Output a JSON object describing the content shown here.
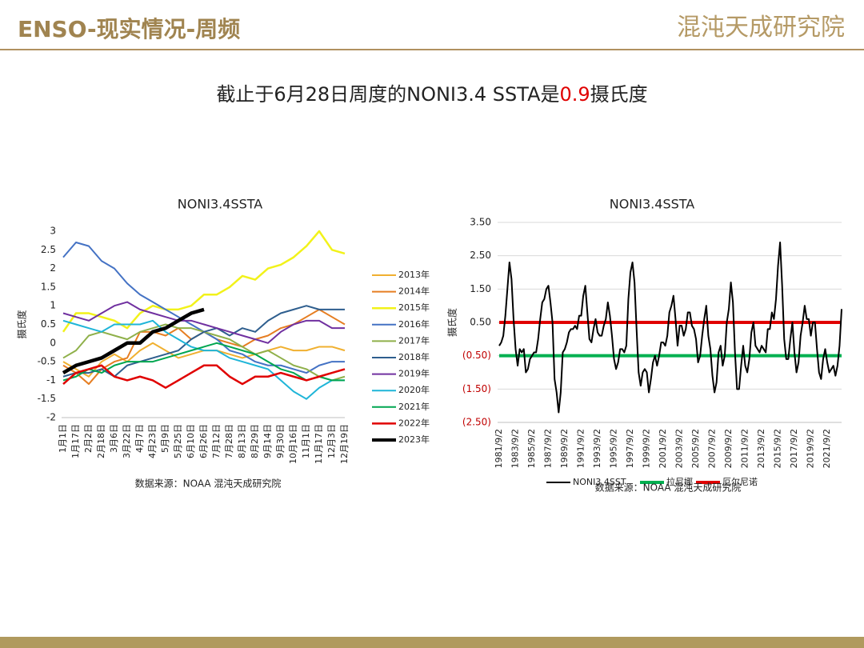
{
  "header": {
    "title": "ENSO-现实情况-周频",
    "logo": "混沌天成研究院"
  },
  "subtitle": {
    "prefix": "截止于6月28日周度的NONI3.4 SSTA是",
    "highlight": "0.9",
    "suffix": "摄氏度"
  },
  "chart_data": [
    {
      "type": "line",
      "title": "NONI3.4SSTA",
      "ylabel": "摄氏度",
      "source": "数据来源：NOAA 混沌天成研究院",
      "categories": [
        "1月1日",
        "1月17日",
        "2月2日",
        "2月18日",
        "3月6日",
        "3月22日",
        "4月7日",
        "4月23日",
        "5月9日",
        "5月25日",
        "6月10日",
        "6月26日",
        "7月12日",
        "7月28日",
        "8月13日",
        "8月29日",
        "9月14日",
        "9月30日",
        "10月16日",
        "11月1日",
        "11月17日",
        "12月3日",
        "12月19日"
      ],
      "ylim": [
        -2,
        3
      ],
      "yticks": [
        -2,
        -1.5,
        -1,
        -0.5,
        0,
        0.5,
        1,
        1.5,
        2,
        2.5,
        3
      ],
      "grid": false,
      "legend": "right",
      "series": [
        {
          "name": "2013年",
          "color": "#f0b030",
          "width": 2,
          "values": [
            -0.5,
            -0.7,
            -0.9,
            -0.5,
            -0.3,
            -0.5,
            -0.2,
            0.0,
            -0.2,
            -0.4,
            -0.3,
            -0.2,
            -0.2,
            -0.3,
            -0.4,
            -0.3,
            -0.2,
            -0.1,
            -0.2,
            -0.2,
            -0.1,
            -0.1,
            -0.2
          ]
        },
        {
          "name": "2014年",
          "color": "#e67e22",
          "width": 2,
          "values": [
            -0.6,
            -0.8,
            -1.1,
            -0.7,
            -0.5,
            -0.4,
            0.3,
            0.3,
            0.2,
            0.4,
            0.1,
            0.3,
            0.1,
            0.0,
            -0.1,
            0.1,
            0.2,
            0.4,
            0.5,
            0.7,
            0.9,
            0.7,
            0.5
          ]
        },
        {
          "name": "2015年",
          "color": "#f2f21a",
          "width": 2.5,
          "values": [
            0.3,
            0.8,
            0.8,
            0.7,
            0.6,
            0.4,
            0.8,
            1.0,
            0.9,
            0.9,
            1.0,
            1.3,
            1.3,
            1.5,
            1.8,
            1.7,
            2.0,
            2.1,
            2.3,
            2.6,
            3.0,
            2.5,
            2.4
          ]
        },
        {
          "name": "2016年",
          "color": "#4472c4",
          "width": 2,
          "values": [
            2.3,
            2.7,
            2.6,
            2.2,
            2.0,
            1.6,
            1.3,
            1.1,
            0.9,
            0.7,
            0.5,
            0.3,
            0.1,
            -0.2,
            -0.3,
            -0.5,
            -0.6,
            -0.6,
            -0.7,
            -0.8,
            -0.6,
            -0.5,
            -0.5
          ]
        },
        {
          "name": "2017年",
          "color": "#8fb04a",
          "width": 2,
          "values": [
            -0.4,
            -0.2,
            0.2,
            0.3,
            0.2,
            0.1,
            0.3,
            0.4,
            0.5,
            0.4,
            0.4,
            0.3,
            0.2,
            0.1,
            -0.1,
            -0.3,
            -0.2,
            -0.4,
            -0.6,
            -0.7,
            -0.9,
            -1.0,
            -0.9
          ]
        },
        {
          "name": "2018年",
          "color": "#2e5e8e",
          "width": 2,
          "values": [
            -0.9,
            -0.8,
            -0.8,
            -0.7,
            -0.9,
            -0.6,
            -0.5,
            -0.4,
            -0.3,
            -0.2,
            0.1,
            0.3,
            0.4,
            0.2,
            0.4,
            0.3,
            0.6,
            0.8,
            0.9,
            1.0,
            0.9,
            0.9,
            0.9
          ]
        },
        {
          "name": "2019年",
          "color": "#7030a0",
          "width": 2,
          "values": [
            0.8,
            0.7,
            0.6,
            0.8,
            1.0,
            1.1,
            0.9,
            0.8,
            0.7,
            0.6,
            0.6,
            0.5,
            0.4,
            0.3,
            0.2,
            0.1,
            0.0,
            0.3,
            0.5,
            0.6,
            0.6,
            0.4,
            0.4
          ]
        },
        {
          "name": "2020年",
          "color": "#1fb5d8",
          "width": 2,
          "values": [
            0.6,
            0.5,
            0.4,
            0.3,
            0.5,
            0.5,
            0.5,
            0.6,
            0.3,
            0.1,
            -0.1,
            -0.2,
            -0.2,
            -0.4,
            -0.5,
            -0.6,
            -0.7,
            -1.0,
            -1.3,
            -1.5,
            -1.2,
            -1.0,
            -1.0
          ]
        },
        {
          "name": "2021年",
          "color": "#00a650",
          "width": 2,
          "values": [
            -1.0,
            -0.9,
            -0.7,
            -0.8,
            -0.6,
            -0.5,
            -0.5,
            -0.5,
            -0.4,
            -0.3,
            -0.2,
            -0.1,
            0.0,
            -0.1,
            -0.2,
            -0.3,
            -0.5,
            -0.7,
            -0.8,
            -1.0,
            -0.9,
            -1.0,
            -1.0
          ]
        },
        {
          "name": "2022年",
          "color": "#e00000",
          "width": 2.5,
          "values": [
            -1.1,
            -0.8,
            -0.7,
            -0.6,
            -0.9,
            -1.0,
            -0.9,
            -1.0,
            -1.2,
            -1.0,
            -0.8,
            -0.6,
            -0.6,
            -0.9,
            -1.1,
            -0.9,
            -0.9,
            -0.8,
            -0.9,
            -1.0,
            -0.9,
            -0.8,
            -0.7
          ]
        },
        {
          "name": "2023年",
          "color": "#000000",
          "width": 4.5,
          "values": [
            -0.8,
            -0.6,
            -0.5,
            -0.4,
            -0.2,
            0.0,
            0.0,
            0.3,
            0.4,
            0.6,
            0.8,
            0.9,
            null,
            null,
            null,
            null,
            null,
            null,
            null,
            null,
            null,
            null,
            null
          ]
        }
      ]
    },
    {
      "type": "line",
      "title": "NONI3.4SSTA",
      "ylabel": "摄氏度",
      "source": "数据来源：NOAA 混沌天成研究院",
      "categories": [
        "1981/9/2",
        null,
        null,
        null,
        null,
        null,
        null,
        null,
        "1983/9/2",
        null,
        null,
        null,
        null,
        null,
        null,
        null,
        "1985/9/2",
        null,
        null,
        null,
        null,
        null,
        null,
        null,
        "1987/9/2",
        null,
        null,
        null,
        null,
        null,
        null,
        null,
        "1989/9/2",
        null,
        null,
        null,
        null,
        null,
        null,
        null,
        "1991/9/2",
        null,
        null,
        null,
        null,
        null,
        null,
        null,
        "1993/9/2",
        null,
        null,
        null,
        null,
        null,
        null,
        null,
        "1995/9/2",
        null,
        null,
        null,
        null,
        null,
        null,
        null,
        "1997/9/2",
        null,
        null,
        null,
        null,
        null,
        null,
        null,
        "1999/9/2",
        null,
        null,
        null,
        null,
        null,
        null,
        null,
        "2001/9/2",
        null,
        null,
        null,
        null,
        null,
        null,
        null,
        "2003/9/2",
        null,
        null,
        null,
        null,
        null,
        null,
        null,
        "2005/9/2",
        null,
        null,
        null,
        null,
        null,
        null,
        null,
        "2007/9/2",
        null,
        null,
        null,
        null,
        null,
        null,
        null,
        "2009/9/2",
        null,
        null,
        null,
        null,
        null,
        null,
        null,
        "2011/9/2",
        null,
        null,
        null,
        null,
        null,
        null,
        null,
        "2013/9/2",
        null,
        null,
        null,
        null,
        null,
        null,
        null,
        "2015/9/2",
        null,
        null,
        null,
        null,
        null,
        null,
        null,
        "2017/9/2",
        null,
        null,
        null,
        null,
        null,
        null,
        null,
        "2019/9/2",
        null,
        null,
        null,
        null,
        null,
        null,
        null,
        "2021/9/2",
        null,
        null,
        null,
        null,
        null,
        null,
        null
      ],
      "ylim": [
        -2.5,
        3.5
      ],
      "yticks": [
        {
          "value": -2.5,
          "label": "(2.50)"
        },
        {
          "value": -1.5,
          "label": "(1.50)"
        },
        {
          "value": -0.5,
          "label": "(0.50)"
        },
        {
          "value": 0.5,
          "label": "0.50"
        },
        {
          "value": 1.5,
          "label": "1.50"
        },
        {
          "value": 2.5,
          "label": "2.50"
        },
        {
          "value": 3.5,
          "label": "3.50"
        }
      ],
      "grid": true,
      "legend": "bottom",
      "series": [
        {
          "name": "NONI3.4SST",
          "color": "#000000",
          "width": 2,
          "values": [
            -0.2,
            -0.1,
            0.1,
            0.7,
            1.5,
            2.3,
            1.8,
            0.6,
            -0.3,
            -0.8,
            -0.3,
            -0.4,
            -0.3,
            -1.0,
            -0.9,
            -0.6,
            -0.5,
            -0.4,
            -0.4,
            0.0,
            0.6,
            1.1,
            1.2,
            1.5,
            1.6,
            1.1,
            0.5,
            -1.2,
            -1.6,
            -2.2,
            -1.6,
            -0.4,
            -0.3,
            -0.1,
            0.2,
            0.3,
            0.3,
            0.4,
            0.3,
            0.7,
            0.7,
            1.3,
            1.6,
            0.8,
            0.0,
            -0.1,
            0.3,
            0.6,
            0.2,
            0.1,
            0.1,
            0.4,
            0.6,
            1.1,
            0.7,
            0.1,
            -0.6,
            -0.9,
            -0.7,
            -0.3,
            -0.3,
            -0.4,
            -0.2,
            1.2,
            2.0,
            2.3,
            1.7,
            0.3,
            -1.0,
            -1.4,
            -1.0,
            -0.9,
            -1.0,
            -1.6,
            -1.2,
            -0.7,
            -0.5,
            -0.8,
            -0.5,
            -0.1,
            -0.1,
            -0.2,
            0.1,
            0.8,
            1.0,
            1.3,
            0.6,
            -0.2,
            0.4,
            0.4,
            0.1,
            0.3,
            0.8,
            0.8,
            0.4,
            0.3,
            0.0,
            -0.7,
            -0.5,
            0.1,
            0.6,
            1.0,
            0.1,
            -0.3,
            -1.1,
            -1.6,
            -1.3,
            -0.4,
            -0.2,
            -0.8,
            -0.5,
            0.5,
            0.9,
            1.7,
            1.1,
            -0.4,
            -1.5,
            -1.5,
            -0.8,
            -0.2,
            -0.8,
            -1.0,
            -0.6,
            0.2,
            0.5,
            -0.2,
            -0.3,
            -0.4,
            -0.2,
            -0.3,
            -0.4,
            0.3,
            0.3,
            0.8,
            0.6,
            1.2,
            2.2,
            2.9,
            1.6,
            0.0,
            -0.6,
            -0.6,
            0.0,
            0.5,
            -0.4,
            -1.0,
            -0.7,
            0.1,
            0.5,
            1.0,
            0.6,
            0.6,
            0.1,
            0.5,
            0.5,
            -0.3,
            -1.0,
            -1.2,
            -0.6,
            -0.3,
            -0.7,
            -1.0,
            -0.9,
            -0.8,
            -1.1,
            -0.8,
            -0.2,
            0.9
          ]
        }
      ],
      "reference_lines": [
        {
          "name": "拉尼娜",
          "value": -0.5,
          "color": "#00b050"
        },
        {
          "name": "厄尔尼诺",
          "value": 0.5,
          "color": "#e00000"
        }
      ]
    }
  ]
}
